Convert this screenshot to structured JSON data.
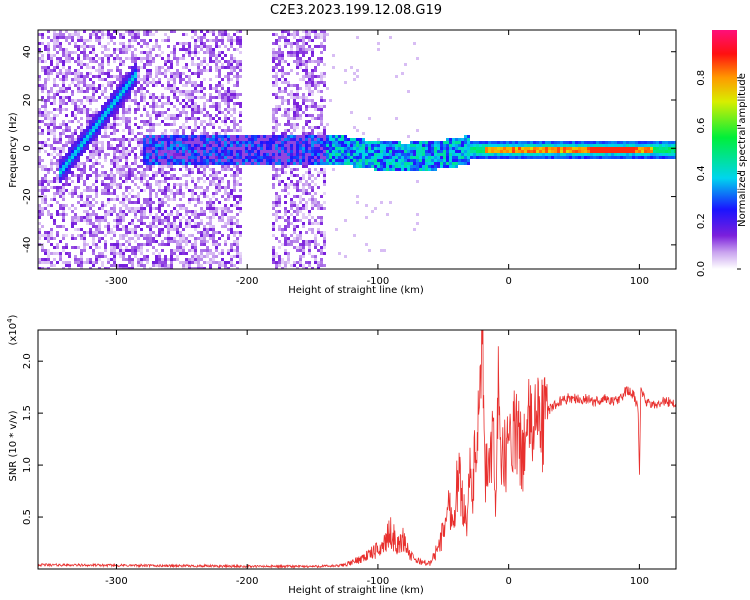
{
  "title": "C2E3.2023.199.12.08.G19",
  "colors": {
    "snr_line": "#e8302e",
    "background": "#ffffff",
    "axis": "#000000"
  },
  "chart_data": [
    {
      "type": "heatmap",
      "xlabel": "Height of straight line (km)",
      "ylabel": "Frequency (Hz)",
      "xlim": [
        -360,
        128
      ],
      "ylim": [
        -50,
        49
      ],
      "x_ticks": [
        -300,
        -200,
        -100,
        0,
        100
      ],
      "x_tick_labels": [
        "-300",
        "-200",
        "-100",
        "0",
        "100"
      ],
      "y_ticks": [
        -40,
        -20,
        0,
        20,
        40
      ],
      "y_tick_labels": [
        "-40",
        "-20",
        "0",
        "20",
        "40"
      ],
      "colorbar": {
        "label": "Normalized spectral amplitude",
        "range": [
          0,
          1
        ],
        "ticks": [
          0.0,
          0.2,
          0.4,
          0.6,
          0.8
        ],
        "tick_labels": [
          "0.0",
          "0.2",
          "0.4",
          "0.6",
          "0.8"
        ]
      },
      "features": {
        "line_track": {
          "x_start": -345,
          "x_end": -285,
          "freq_start": -10,
          "freq_end": 32
        },
        "noise_region_x": [
          -360,
          -140
        ],
        "carrier_band_freq": 0
      }
    },
    {
      "type": "line",
      "xlabel": "Height of straight line (km)",
      "ylabel": "SNR (10 * v/v)",
      "y_scale_label": "(x10",
      "y_scale_exponent": "4",
      "xlim": [
        -360,
        128
      ],
      "ylim": [
        0,
        23000
      ],
      "x_ticks": [
        -300,
        -200,
        -100,
        0,
        100
      ],
      "x_tick_labels": [
        "-300",
        "-200",
        "-100",
        "0",
        "100"
      ],
      "y_ticks": [
        5000,
        10000,
        15000,
        20000
      ],
      "y_tick_labels": [
        "0.5",
        "1.0",
        "1.5",
        "2.0"
      ],
      "series": [
        {
          "x": [
            -360,
            -300,
            -250,
            -200,
            -150,
            -130,
            -120,
            -110,
            -100,
            -95,
            -90,
            -85,
            -80,
            -75,
            -70,
            -60,
            -55,
            -50,
            -47,
            -45,
            -42,
            -40,
            -38,
            -35,
            -32,
            -30,
            -28,
            -25,
            -22,
            -20,
            -19,
            -18,
            -17,
            -15,
            -12,
            -10,
            -8,
            -5,
            0,
            5,
            10,
            15,
            20,
            25,
            30,
            35,
            40,
            45,
            50,
            55,
            60,
            65,
            70,
            75,
            80,
            85,
            90,
            95,
            99,
            100,
            101,
            105,
            110,
            115,
            120,
            128
          ],
          "y": [
            400,
            350,
            300,
            250,
            250,
            300,
            600,
            1200,
            1800,
            2500,
            3600,
            2200,
            2900,
            1200,
            800,
            500,
            1800,
            3500,
            5800,
            6000,
            4200,
            7800,
            9000,
            6200,
            4800,
            9500,
            6500,
            12000,
            14500,
            23000,
            16000,
            6500,
            11500,
            9000,
            12500,
            6500,
            19000,
            10000,
            12000,
            13200,
            11000,
            13500,
            14600,
            13800,
            15200,
            15800,
            16200,
            16400,
            16500,
            16200,
            16400,
            16000,
            16300,
            16400,
            16100,
            16300,
            17200,
            16800,
            15500,
            8500,
            17500,
            16000,
            15700,
            16000,
            16200,
            15800
          ]
        }
      ]
    }
  ]
}
